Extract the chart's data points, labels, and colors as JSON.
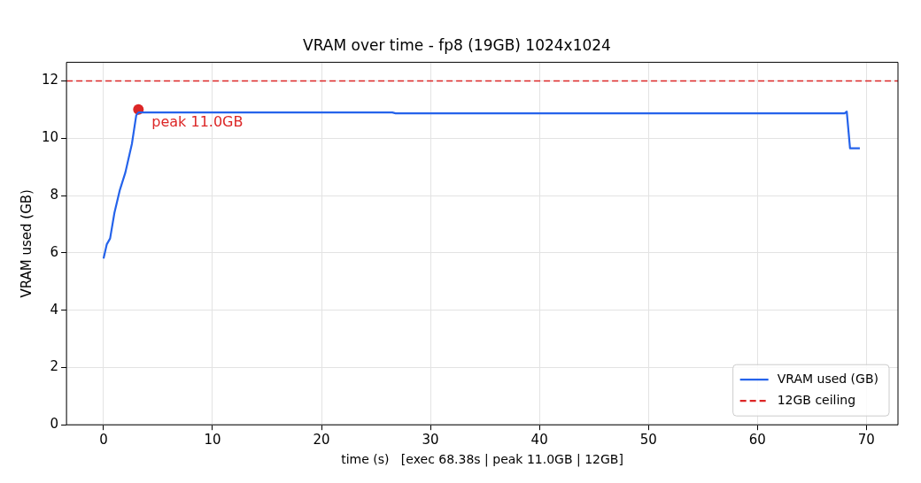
{
  "chart_data": {
    "type": "line",
    "title": "VRAM over time - fp8 (19GB) 1024x1024",
    "xlabel": "time (s)   [exec 68.38s | peak 11.0GB | 12GB]",
    "ylabel": "VRAM used (GB)",
    "series": [
      {
        "name": "VRAM used (GB)",
        "color": "#2563eb",
        "x": [
          0,
          0.3,
          0.6,
          1,
          1.5,
          2,
          2.6,
          3,
          3.2,
          26.5,
          26.8,
          68,
          68.2,
          68.5,
          69.4
        ],
        "values": [
          5.8,
          6.3,
          6.5,
          7.4,
          8.2,
          8.8,
          9.8,
          10.8,
          10.9,
          10.9,
          10.87,
          10.87,
          10.93,
          9.65,
          9.65
        ]
      },
      {
        "type": "scatter",
        "color": "#dc2626",
        "marker": "circle",
        "x": [
          3.2
        ],
        "values": [
          11.0
        ]
      }
    ],
    "ref_lines": [
      {
        "axis": "y",
        "value": 12,
        "label": "12GB ceiling",
        "color": "#dc2626",
        "line_style": "dashed"
      }
    ],
    "annotations": [
      {
        "text": "peak 11.0GB",
        "x": 3.2,
        "y": 11.0
      }
    ],
    "xlim": [
      -3.4,
      72.9
    ],
    "xticks": [
      0,
      10,
      20,
      30,
      40,
      50,
      60,
      70
    ],
    "ylim": [
      0,
      12.65
    ],
    "yticks": [
      0,
      2,
      4,
      6,
      8,
      10,
      12
    ],
    "grid": true,
    "legend": "bottom right",
    "line_style": "solid"
  }
}
